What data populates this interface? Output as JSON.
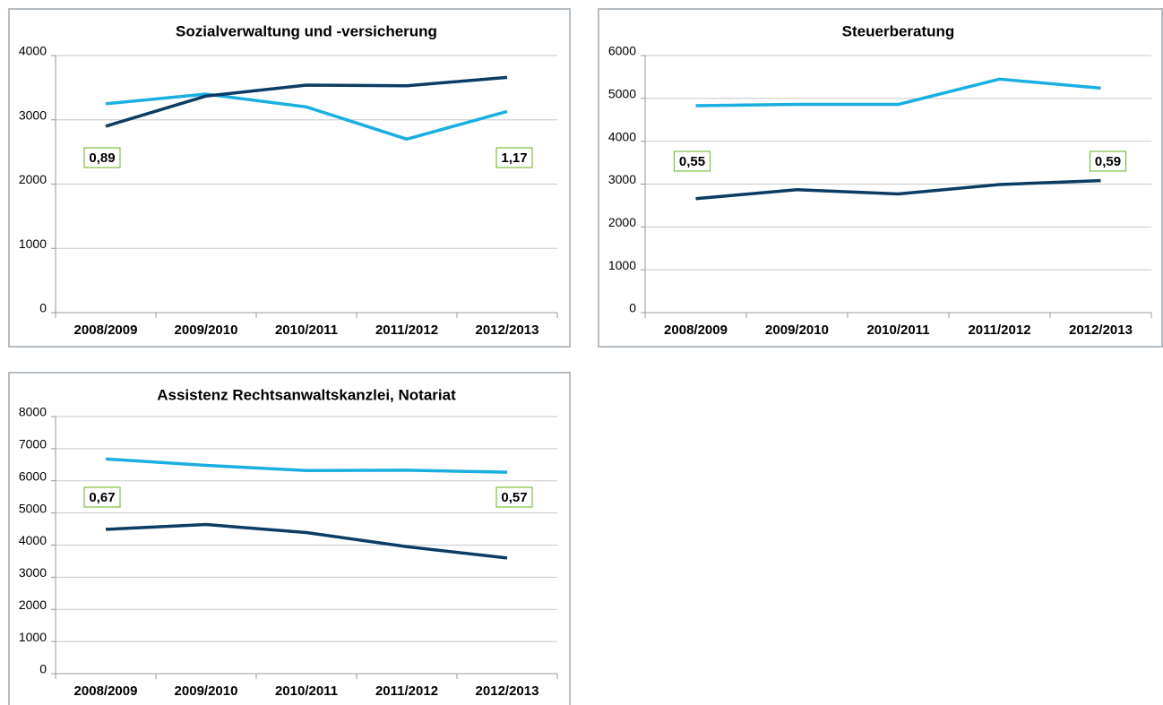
{
  "chart_data": [
    {
      "type": "line",
      "title": "Sozialverwaltung und -versicherung",
      "categories": [
        "2008/2009",
        "2009/2010",
        "2010/2011",
        "2011/2012",
        "2012/2013"
      ],
      "series": [
        {
          "color": "#1aafe0",
          "values": [
            3250,
            3400,
            3200,
            2700,
            3130
          ]
        },
        {
          "color": "#0d3c63",
          "values": [
            2900,
            3370,
            3540,
            3530,
            3660
          ]
        }
      ],
      "ylim": [
        0,
        4000
      ],
      "yticks": [
        0,
        1000,
        2000,
        3000,
        4000
      ],
      "grid": true,
      "annotations": [
        "0,89",
        "1,17"
      ]
    },
    {
      "type": "line",
      "title": "Steuerberatung",
      "categories": [
        "2008/2009",
        "2009/2010",
        "2010/2011",
        "2011/2012",
        "2012/2013"
      ],
      "series": [
        {
          "color": "#1aafe0",
          "values": [
            4830,
            4860,
            4860,
            5450,
            5240
          ]
        },
        {
          "color": "#0d3c63",
          "values": [
            2660,
            2870,
            2770,
            2990,
            3080
          ]
        }
      ],
      "ylim": [
        0,
        6000
      ],
      "yticks": [
        0,
        1000,
        2000,
        3000,
        4000,
        5000,
        6000
      ],
      "grid": true,
      "annotations": [
        "0,55",
        "0,59"
      ]
    },
    {
      "type": "line",
      "title": "Assistenz Rechtsanwaltskanzlei, Notariat",
      "categories": [
        "2008/2009",
        "2009/2010",
        "2010/2011",
        "2011/2012",
        "2012/2013"
      ],
      "series": [
        {
          "color": "#1aafe0",
          "values": [
            6680,
            6480,
            6320,
            6330,
            6270
          ]
        },
        {
          "color": "#0d3c63",
          "values": [
            4490,
            4640,
            4390,
            3950,
            3600
          ]
        }
      ],
      "ylim": [
        0,
        8000
      ],
      "yticks": [
        0,
        1000,
        2000,
        3000,
        4000,
        5000,
        6000,
        7000,
        8000
      ],
      "grid": true,
      "annotations": [
        "0,67",
        "0,57"
      ]
    }
  ]
}
